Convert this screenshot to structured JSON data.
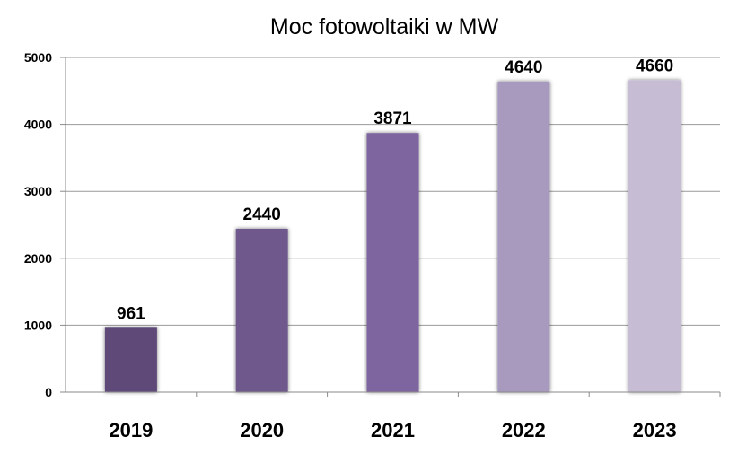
{
  "chart_data": {
    "type": "bar",
    "title": "Moc fotowoltaiki w MW",
    "xlabel": "",
    "ylabel": "",
    "categories": [
      "2019",
      "2020",
      "2021",
      "2022",
      "2023"
    ],
    "values": [
      961,
      2440,
      3871,
      4640,
      4660
    ],
    "data_labels": [
      "961",
      "2440",
      "3871",
      "4640",
      "4660"
    ],
    "bar_colors": [
      "#5f4978",
      "#6e588c",
      "#7e65a0",
      "#a899bf",
      "#c6bdd5"
    ],
    "ylim": [
      0,
      5000
    ],
    "yticks": [
      0,
      1000,
      2000,
      3000,
      4000,
      5000
    ],
    "ytick_labels": [
      "0",
      "1000",
      "2000",
      "3000",
      "4000",
      "5000"
    ],
    "grid": true,
    "legend": "none"
  }
}
